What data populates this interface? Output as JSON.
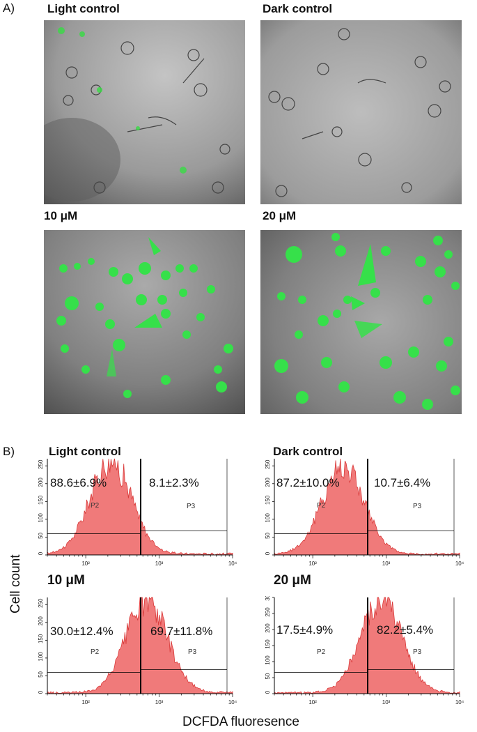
{
  "panel_a": {
    "letter": "A)",
    "images": [
      {
        "title": "Light control",
        "green_cells": "sparse"
      },
      {
        "title": "Dark control",
        "green_cells": "none"
      },
      {
        "title": "10 μM",
        "green_cells": "many"
      },
      {
        "title": "20 μM",
        "green_cells": "many"
      }
    ]
  },
  "panel_b": {
    "letter": "B)",
    "ylabel": "Cell count",
    "xlabel": "DCFDA fluoresence",
    "gate_left": "P2",
    "gate_right": "P3"
  },
  "colors": {
    "histogram_fill": "#f07a7a",
    "histogram_edge": "#d93a3a",
    "fluorescence_green": "#33e04a",
    "micrograph_gray": "#8c8c8c"
  },
  "chart_data": [
    {
      "type": "area",
      "title": "Light control",
      "x_scale": "log",
      "xlim": [
        30,
        10000
      ],
      "x_ticks": [
        "10²",
        "10³",
        "10⁴"
      ],
      "ylim": [
        0,
        270
      ],
      "y_ticks": [
        0,
        50,
        100,
        150,
        200,
        250
      ],
      "gate_x": 560,
      "left_percent": "88.6±6.9%",
      "right_percent": "8.1±2.3%",
      "peak_x": 220,
      "peak_y": 262
    },
    {
      "type": "area",
      "title": "Dark control",
      "x_scale": "log",
      "xlim": [
        30,
        10000
      ],
      "x_ticks": [
        "10²",
        "10³",
        "10⁴"
      ],
      "ylim": [
        0,
        270
      ],
      "y_ticks": [
        0,
        50,
        100,
        150,
        200,
        250
      ],
      "gate_x": 560,
      "left_percent": "87.2±10.0%",
      "right_percent": "10.7±6.4%",
      "peak_x": 260,
      "peak_y": 250
    },
    {
      "type": "area",
      "title": "10 μM",
      "x_scale": "log",
      "xlim": [
        30,
        10000
      ],
      "x_ticks": [
        "10²",
        "10³",
        "10⁴"
      ],
      "ylim": [
        0,
        270
      ],
      "y_ticks": [
        0,
        50,
        100,
        150,
        200,
        250
      ],
      "gate_x": 560,
      "left_percent": "30.0±12.4%",
      "right_percent": "69.7±11.8%",
      "peak_x": 680,
      "peak_y": 262
    },
    {
      "type": "area",
      "title": "20 μM",
      "x_scale": "log",
      "xlim": [
        30,
        10000
      ],
      "x_ticks": [
        "10²",
        "10³",
        "10⁴"
      ],
      "ylim": [
        0,
        300
      ],
      "y_ticks": [
        0,
        50,
        100,
        150,
        200,
        250,
        300
      ],
      "gate_x": 560,
      "left_percent": "17.5±4.9%",
      "right_percent": "82.2±5.4%",
      "peak_x": 850,
      "peak_y": 292
    }
  ]
}
